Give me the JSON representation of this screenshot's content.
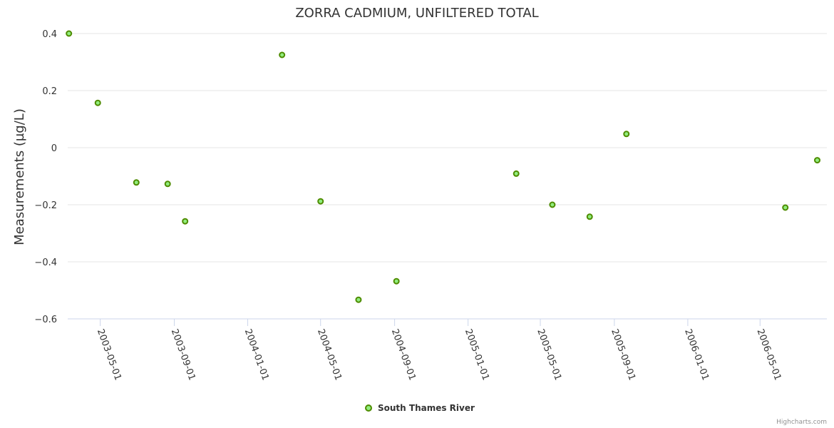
{
  "chart_data": {
    "type": "scatter",
    "title": "ZORRA CADMIUM, UNFILTERED TOTAL",
    "xlabel": "",
    "ylabel": "Measurements (µg/L)",
    "ylim": [
      -0.6,
      0.4
    ],
    "y_ticks": [
      0.4,
      0.2,
      0,
      -0.2,
      -0.4,
      -0.6
    ],
    "y_tick_labels": [
      "0.4",
      "0.2",
      "0",
      "−0.2",
      "−0.4",
      "−0.6"
    ],
    "xlim": [
      "2003-03-08",
      "2006-08-20"
    ],
    "x_ticks": [
      "2003-05-01",
      "2003-09-01",
      "2004-01-01",
      "2004-05-01",
      "2004-09-01",
      "2005-01-01",
      "2005-05-01",
      "2005-09-01",
      "2006-01-01",
      "2006-05-01"
    ],
    "grid": true,
    "legend_position": "bottom-center",
    "series": [
      {
        "name": "South Thames River",
        "color": "#90ed7d",
        "edge_color": "#4e8b00",
        "points": [
          {
            "x": "2003-03-10",
            "y": 0.4
          },
          {
            "x": "2003-04-27",
            "y": 0.157
          },
          {
            "x": "2003-06-30",
            "y": -0.122
          },
          {
            "x": "2003-08-21",
            "y": -0.127
          },
          {
            "x": "2003-09-19",
            "y": -0.258
          },
          {
            "x": "2004-02-27",
            "y": 0.325
          },
          {
            "x": "2004-05-01",
            "y": -0.188
          },
          {
            "x": "2004-07-03",
            "y": -0.533
          },
          {
            "x": "2004-09-04",
            "y": -0.468
          },
          {
            "x": "2005-03-22",
            "y": -0.091
          },
          {
            "x": "2005-05-21",
            "y": -0.2
          },
          {
            "x": "2005-07-22",
            "y": -0.242
          },
          {
            "x": "2005-09-21",
            "y": 0.048
          },
          {
            "x": "2006-06-12",
            "y": -0.21
          },
          {
            "x": "2006-08-04",
            "y": -0.044
          }
        ]
      }
    ]
  },
  "credits": "Highcharts.com"
}
